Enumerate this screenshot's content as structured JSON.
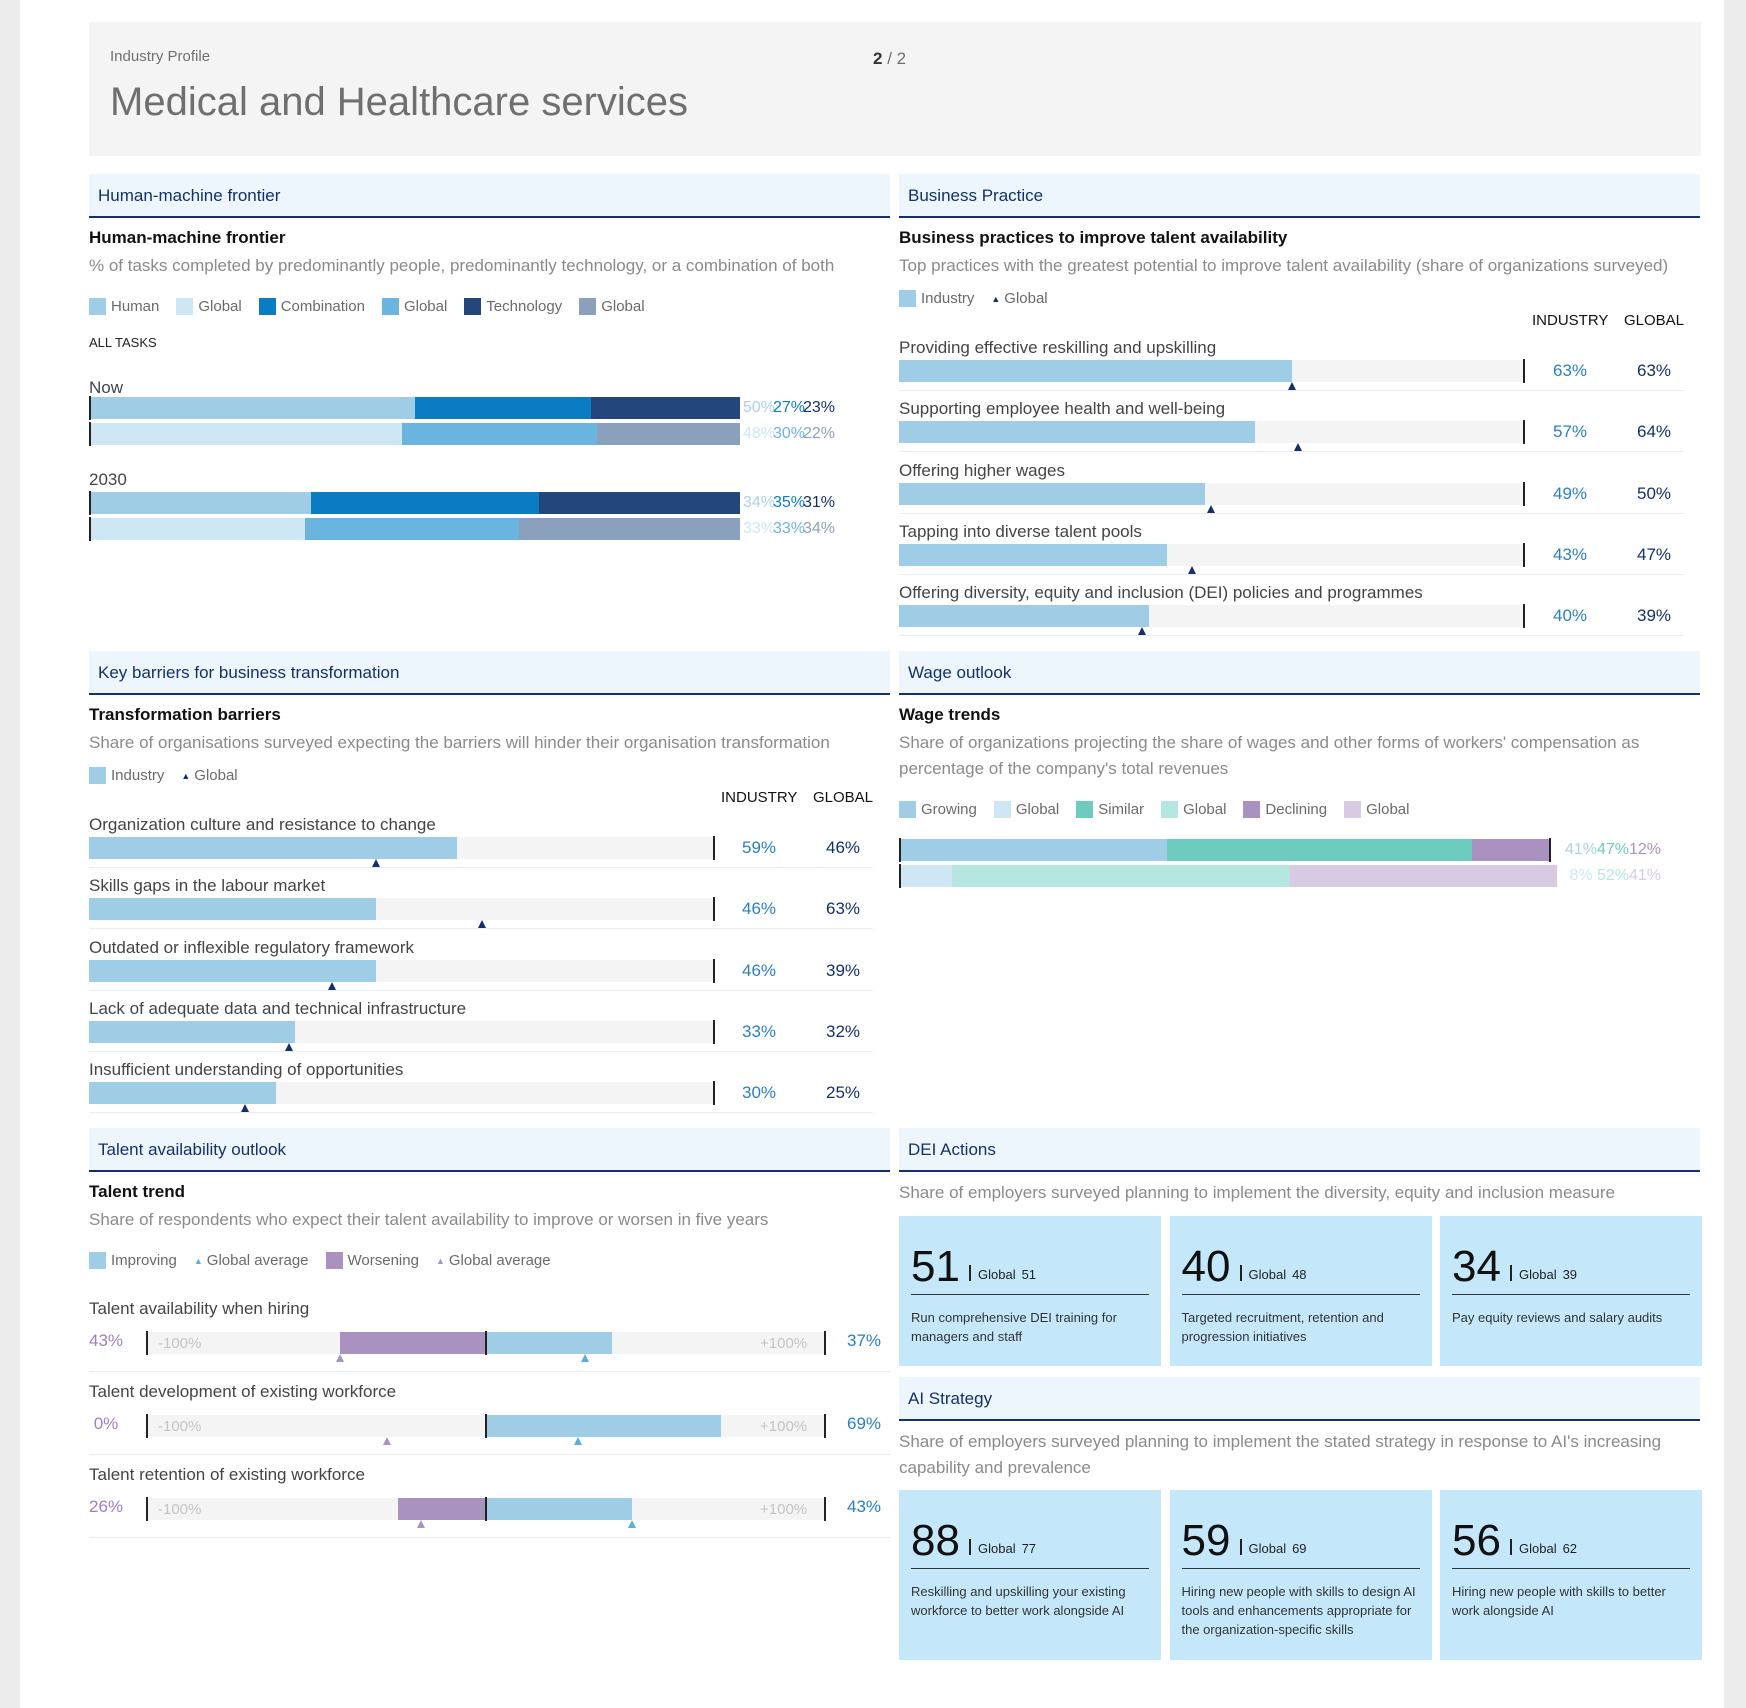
{
  "header": {
    "kicker": "Industry Profile",
    "title": "Medical and Healthcare services",
    "page_current": "2",
    "page_sep": "/",
    "page_total": "2"
  },
  "colors": {
    "navy": "#13306a",
    "industry": "#a0cde6",
    "global_human": "#cfe6f4",
    "combination": "#0a7cc4",
    "global_combination": "#6ab4e0",
    "technology": "#23477a",
    "global_technology": "#8ba0bb",
    "similar": "#6ecbc0",
    "global_similar": "#b5e6df",
    "declining": "#a992c0",
    "global_declining": "#d8cae3",
    "worsening": "#a992c0",
    "card": "#c4e8fa"
  },
  "sections": {
    "hmf": {
      "band": "Human-machine frontier",
      "title": "Human-machine frontier",
      "subtitle": "% of tasks completed by predominantly people, predominantly technology, or a combination of both",
      "legend": [
        "Human",
        "Global",
        "Combination",
        "Global",
        "Technology",
        "Global"
      ],
      "all_tasks": "ALL TASKS"
    },
    "bp": {
      "band": "Business Practice",
      "title": "Business practices to improve talent availability",
      "subtitle": "Top practices with the greatest potential to improve talent availability (share of organizations surveyed)",
      "legend": [
        "Industry",
        "Global"
      ],
      "col_industry": "INDUSTRY",
      "col_global": "GLOBAL"
    },
    "kb": {
      "band": "Key barriers for business transformation",
      "title": "Transformation barriers",
      "subtitle": "Share of organisations surveyed expecting the barriers will hinder their organisation transformation",
      "legend": [
        "Industry",
        "Global"
      ],
      "col_industry": "INDUSTRY",
      "col_global": "GLOBAL"
    },
    "wo": {
      "band": "Wage outlook",
      "title": "Wage trends",
      "subtitle": "Share of organizations projecting the share of wages and other forms of workers' compensation as percentage of the company's total revenues",
      "legend": [
        "Growing",
        "Global",
        "Similar",
        "Global",
        "Declining",
        "Global"
      ]
    },
    "ta": {
      "band": "Talent availability outlook",
      "title": "Talent trend",
      "subtitle": "Share of respondents who expect their talent availability to improve or worsen in five years",
      "legend": [
        "Improving",
        "Global average",
        "Worsening",
        "Global average"
      ],
      "min_label": "-100%",
      "max_label": "+100%"
    },
    "dei": {
      "band": "DEI Actions",
      "subtitle": "Share of employers surveyed planning to implement the diversity, equity and inclusion measure",
      "global_label": "Global",
      "cards": [
        {
          "value": "51",
          "global": "51",
          "desc": "Run comprehensive DEI training for managers and staff"
        },
        {
          "value": "40",
          "global": "48",
          "desc": "Targeted recruitment, retention and progression initiatives"
        },
        {
          "value": "34",
          "global": "39",
          "desc": "Pay equity reviews and salary audits"
        }
      ]
    },
    "ai": {
      "band": "AI Strategy",
      "subtitle": "Share of employers surveyed planning to implement the stated strategy in response to AI's increasing capability and prevalence",
      "global_label": "Global",
      "cards": [
        {
          "value": "88",
          "global": "77",
          "desc": "Reskilling and upskilling your existing workforce to better work alongside AI"
        },
        {
          "value": "59",
          "global": "69",
          "desc": "Hiring new people with skills to design AI tools and enhancements appropriate for the organization-specific skills"
        },
        {
          "value": "56",
          "global": "62",
          "desc": "Hiring new people with skills to better work alongside AI"
        }
      ]
    }
  },
  "chart_data": [
    {
      "type": "bar",
      "name": "hmf",
      "stacked": true,
      "groups": [
        {
          "label": "Now",
          "industry": {
            "values": [
              50,
              27,
              23
            ],
            "labels": [
              "50%",
              "27%",
              "23%"
            ]
          },
          "global": {
            "values": [
              48,
              30,
              22
            ],
            "labels": [
              "48%",
              "30%",
              "22%"
            ]
          }
        },
        {
          "label": "2030",
          "industry": {
            "values": [
              34,
              35,
              31
            ],
            "labels": [
              "34%",
              "35%",
              "31%"
            ]
          },
          "global": {
            "values": [
              33,
              33,
              34
            ],
            "labels": [
              "33%",
              "33%",
              "34%"
            ]
          }
        }
      ]
    },
    {
      "type": "bar",
      "name": "bp",
      "xlim": [
        0,
        100
      ],
      "categories": [
        "Providing effective reskilling and upskilling",
        "Supporting employee health and well-being",
        "Offering higher wages",
        "Tapping into diverse talent pools",
        "Offering diversity, equity and inclusion (DEI) policies and programmes"
      ],
      "industry": [
        63,
        57,
        49,
        43,
        40
      ],
      "global": [
        63,
        64,
        50,
        47,
        39
      ],
      "industry_labels": [
        "63%",
        "57%",
        "49%",
        "43%",
        "40%"
      ],
      "global_labels": [
        "63%",
        "64%",
        "50%",
        "47%",
        "39%"
      ]
    },
    {
      "type": "bar",
      "name": "kb",
      "xlim": [
        0,
        100
      ],
      "categories": [
        "Organization culture and resistance to change",
        "Skills gaps in the labour market",
        "Outdated or inflexible regulatory framework",
        "Lack of adequate data and technical infrastructure",
        "Insufficient understanding of opportunities"
      ],
      "industry": [
        59,
        46,
        46,
        33,
        30
      ],
      "global": [
        46,
        63,
        39,
        32,
        25
      ],
      "industry_labels": [
        "59%",
        "46%",
        "46%",
        "33%",
        "30%"
      ],
      "global_labels": [
        "46%",
        "63%",
        "39%",
        "32%",
        "25%"
      ]
    },
    {
      "type": "bar",
      "name": "wo",
      "stacked": true,
      "industry": {
        "values": [
          41,
          47,
          12
        ],
        "labels": [
          "41%",
          "47%",
          "12%"
        ]
      },
      "global": {
        "values": [
          8,
          52,
          41
        ],
        "labels": [
          "8%",
          "52%",
          "41%"
        ]
      }
    },
    {
      "type": "bar",
      "name": "ta",
      "diverging": true,
      "xlim": [
        -100,
        100
      ],
      "categories": [
        "Talent availability when hiring",
        "Talent development of existing workforce",
        "Talent retention of existing workforce"
      ],
      "worsening": [
        43,
        0,
        26
      ],
      "improving": [
        37,
        69,
        43
      ],
      "worsening_labels": [
        "43%",
        "0%",
        "26%"
      ],
      "improving_labels": [
        "37%",
        "69%",
        "43%"
      ],
      "global_worsening": [
        43,
        29,
        19
      ],
      "global_improving": [
        29,
        27,
        43
      ]
    }
  ]
}
